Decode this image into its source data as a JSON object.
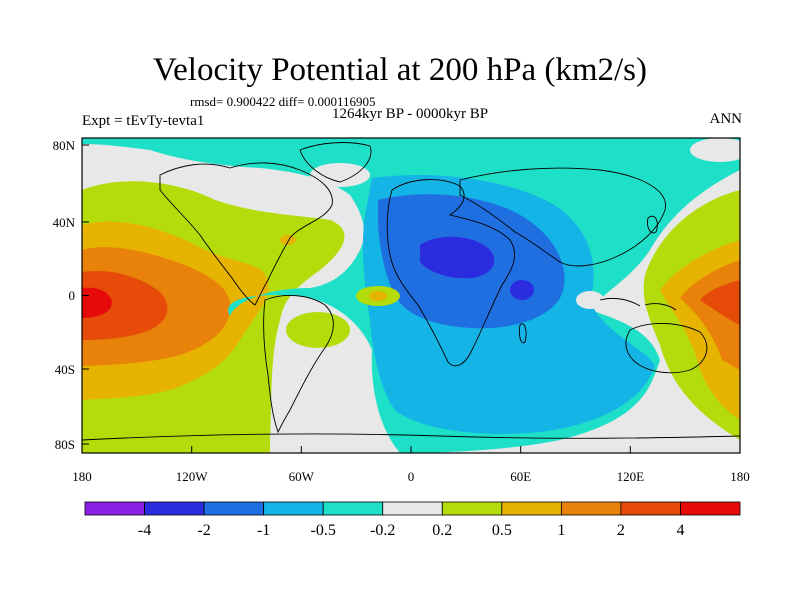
{
  "title": "Velocity Potential at 200 hPa (km2/s)",
  "stats_line": "rmsd= 0.900422 diff= 0.000116905",
  "subtitle": "1264kyr BP - 0000kyr BP",
  "experiment_label": "Expt = tEvTy-tevta1",
  "season_label": "ANN",
  "chart_data": {
    "type": "contour-map",
    "title": "Velocity Potential at 200 hPa (km2/s)",
    "projection": "cylindrical-equidistant",
    "lon_range": [
      -180,
      180
    ],
    "lat_range": [
      -90,
      90
    ],
    "x_ticks": [
      {
        "value": -180,
        "label": "180"
      },
      {
        "value": -120,
        "label": "120W"
      },
      {
        "value": -60,
        "label": "60W"
      },
      {
        "value": 0,
        "label": "0"
      },
      {
        "value": 60,
        "label": "60E"
      },
      {
        "value": 120,
        "label": "120E"
      },
      {
        "value": 180,
        "label": "180"
      }
    ],
    "y_ticks": [
      {
        "value": 80,
        "label": "80N"
      },
      {
        "value": 40,
        "label": "40N"
      },
      {
        "value": 0,
        "label": "0"
      },
      {
        "value": -40,
        "label": "40S"
      },
      {
        "value": -80,
        "label": "80S"
      }
    ],
    "colorbar": {
      "levels": [
        "-4",
        "-2",
        "-1",
        "-0.5",
        "-0.2",
        "0.2",
        "0.5",
        "1",
        "2",
        "4"
      ],
      "colors": [
        "#8a1fe6",
        "#2b2be0",
        "#1f6fe0",
        "#14b4e6",
        "#1ee0c8",
        "#e8e8e8",
        "#b4dc0a",
        "#e6b400",
        "#e8820a",
        "#e64b0a",
        "#e60a0a"
      ]
    },
    "regions": [
      {
        "sign": "negative",
        "center": "Africa / Arabia",
        "min_level": "-4"
      },
      {
        "sign": "positive",
        "center": "central Pacific",
        "max_level": "4"
      },
      {
        "sign": "positive",
        "center": "western Pacific / Indonesia",
        "max_level": "4"
      }
    ]
  }
}
